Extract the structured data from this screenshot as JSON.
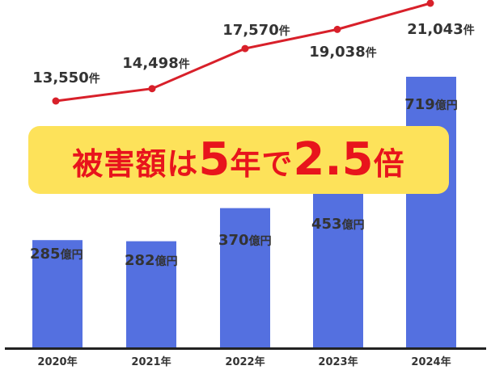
{
  "chart_data": {
    "type": "bar",
    "categories": [
      "2020年",
      "2021年",
      "2022年",
      "2023年",
      "2024年"
    ],
    "series": [
      {
        "type": "bar",
        "values": [
          285,
          282,
          370,
          453,
          719
        ],
        "unit": "億円",
        "labels": [
          "285億円",
          "282億円",
          "370億円",
          "453億円",
          "719億円"
        ],
        "color": "#5470e0"
      },
      {
        "type": "line",
        "values": [
          13550,
          14498,
          17570,
          19038,
          21043
        ],
        "unit": "件",
        "labels": [
          "13,550件",
          "14,498件",
          "17,570件",
          "19,038件",
          "21,043件"
        ],
        "color": "#d8202a"
      }
    ],
    "title": "",
    "xlabel": "",
    "ylabel": ""
  },
  "banner": {
    "part1": "被害額は",
    "part2": "5",
    "part3": "年で",
    "part4": "2.5",
    "part5": "倍",
    "bg_color": "#fde25a",
    "text_color": "#e8141c"
  }
}
